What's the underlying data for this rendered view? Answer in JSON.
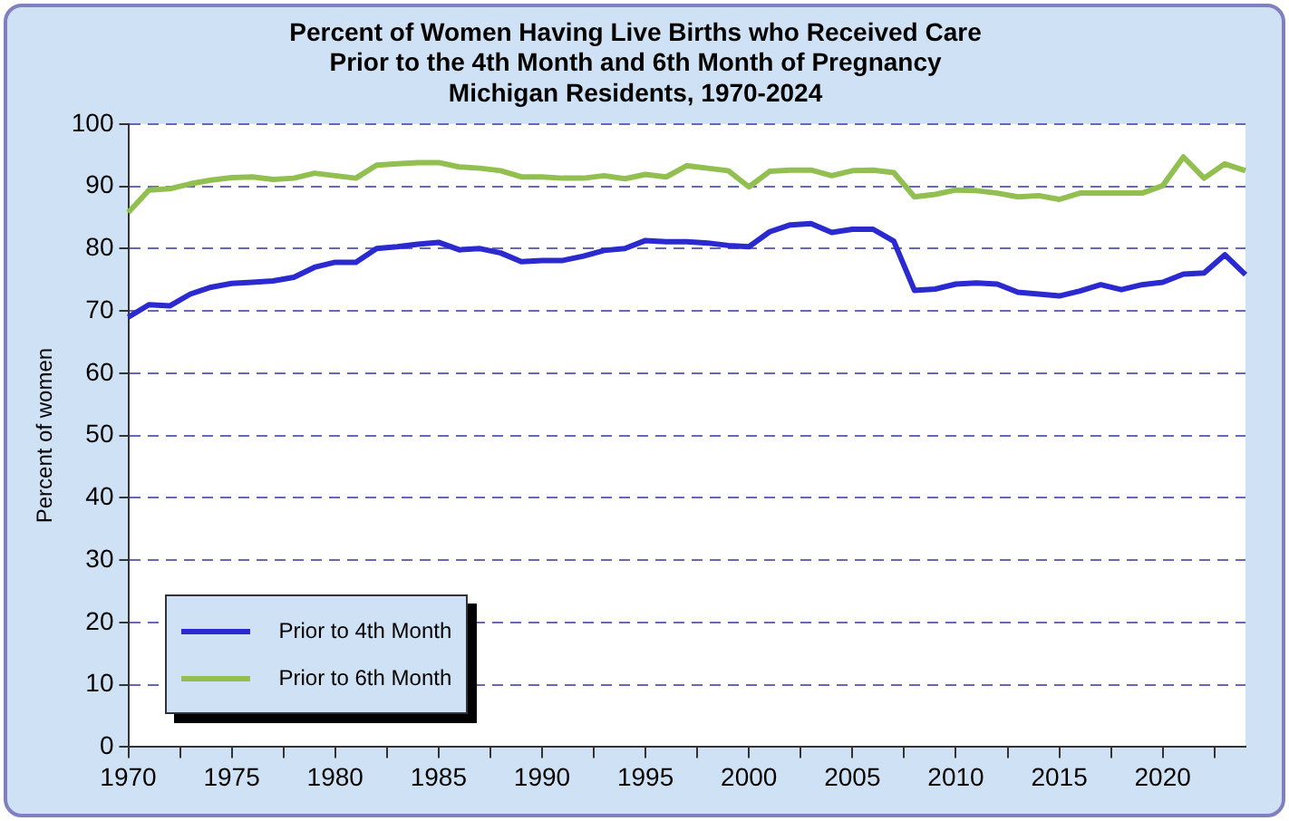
{
  "chart_data": {
    "type": "line",
    "title": "Percent of Women Having Live Births who Received Care\nPrior to the 4th Month and 6th Month of Pregnancy\nMichigan Residents, 1970-2024",
    "ylabel": "Percent of women",
    "x": [
      1970,
      1971,
      1972,
      1973,
      1974,
      1975,
      1976,
      1977,
      1978,
      1979,
      1980,
      1981,
      1982,
      1983,
      1984,
      1985,
      1986,
      1987,
      1988,
      1989,
      1990,
      1991,
      1992,
      1993,
      1994,
      1995,
      1996,
      1997,
      1998,
      1999,
      2000,
      2001,
      2002,
      2003,
      2004,
      2005,
      2006,
      2007,
      2008,
      2009,
      2010,
      2011,
      2012,
      2013,
      2014,
      2015,
      2016,
      2017,
      2018,
      2019,
      2020,
      2021,
      2022,
      2023,
      2024
    ],
    "series": [
      {
        "name": "Prior to 4th Month",
        "color": "#2a2ad0",
        "values": [
          69,
          71,
          70.8,
          72.7,
          73.8,
          74.4,
          74.6,
          74.8,
          75.4,
          77,
          77.8,
          77.8,
          80,
          80.3,
          80.7,
          81,
          79.8,
          80,
          79.3,
          77.9,
          78.1,
          78.1,
          78.8,
          79.7,
          80,
          81.3,
          81.1,
          81.1,
          80.9,
          80.5,
          80.3,
          82.7,
          83.8,
          84,
          82.6,
          83.1,
          83.1,
          81.2,
          73.3,
          73.5,
          74.3,
          74.5,
          74.3,
          73,
          72.7,
          72.4,
          73.2,
          74.2,
          73.4,
          74.2,
          74.6,
          75.9,
          76.1,
          79,
          75.8
        ]
      },
      {
        "name": "Prior to 6th Month",
        "color": "#92c050",
        "values": [
          85.8,
          89.4,
          89.6,
          90.4,
          91,
          91.4,
          91.5,
          91.1,
          91.3,
          92.1,
          91.7,
          91.3,
          93.4,
          93.6,
          93.8,
          93.8,
          93.1,
          92.9,
          92.5,
          91.5,
          91.5,
          91.3,
          91.3,
          91.7,
          91.2,
          91.9,
          91.5,
          93.3,
          92.9,
          92.5,
          89.9,
          92.4,
          92.6,
          92.6,
          91.7,
          92.5,
          92.6,
          92.2,
          88.3,
          88.7,
          89.4,
          89.3,
          88.9,
          88.3,
          88.5,
          87.9,
          88.9,
          88.9,
          88.9,
          88.9,
          90.1,
          94.7,
          91.3,
          93.6,
          92.5
        ]
      }
    ],
    "xlim": [
      1970,
      2024
    ],
    "xticks": [
      1970,
      {
        "value": 1972.5,
        "label": null
      },
      1975,
      {
        "value": 1977.5,
        "label": null
      },
      1980,
      {
        "value": 1982.5,
        "label": null
      },
      1985,
      {
        "value": 1987.5,
        "label": null
      },
      1990,
      {
        "value": 1992.5,
        "label": null
      },
      1995,
      {
        "value": 1997.5,
        "label": null
      },
      2000,
      {
        "value": 2002.5,
        "label": null
      },
      2005,
      {
        "value": 2007.5,
        "label": null
      },
      2010,
      {
        "value": 2012.5,
        "label": null
      },
      2015,
      {
        "value": 2017.5,
        "label": null
      },
      2020,
      {
        "value": 2022.5,
        "label": null
      }
    ],
    "ylim": [
      0,
      100
    ],
    "yticks": [
      0,
      10,
      20,
      30,
      40,
      50,
      60,
      70,
      80,
      90,
      100
    ],
    "grid": "y",
    "legend": "bottom left",
    "marker": "none",
    "line_style": "solid"
  }
}
